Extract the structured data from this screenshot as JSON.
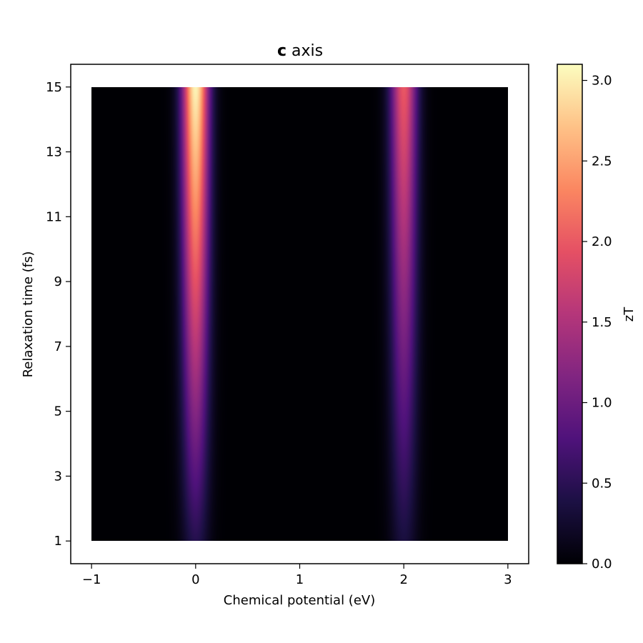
{
  "chart_data": {
    "type": "heatmap",
    "title_bold": "c",
    "title_rest": " axis",
    "xlabel": "Chemical potential (eV)",
    "ylabel": "Relaxation time (fs)",
    "colorbar_label": "zT",
    "colormap": "magma",
    "xlim": [
      -1.2,
      3.2
    ],
    "ylim": [
      0.3,
      15.7
    ],
    "data_extent_x": [
      -1,
      3
    ],
    "data_extent_y": [
      1,
      15
    ],
    "x_ticks": [
      -1,
      0,
      1,
      2,
      3
    ],
    "x_tick_labels": [
      "−1",
      "0",
      "1",
      "2",
      "3"
    ],
    "y_ticks": [
      1,
      3,
      5,
      7,
      9,
      11,
      13,
      15
    ],
    "y_tick_labels": [
      "1",
      "3",
      "5",
      "7",
      "9",
      "11",
      "13",
      "15"
    ],
    "colorbar_range": [
      0,
      3.1
    ],
    "colorbar_ticks": [
      0,
      0.5,
      1,
      1.5,
      2,
      2.5,
      3
    ],
    "colorbar_tick_labels": [
      "0.0",
      "0.5",
      "1.0",
      "1.5",
      "2.0",
      "2.5",
      "3.0"
    ],
    "peaks": [
      {
        "center_eV": 0.0,
        "width_eV": 0.09,
        "zT_at_1fs": 0.45,
        "zT_at_15fs": 3.05
      },
      {
        "center_eV": 2.0,
        "width_eV": 0.09,
        "zT_at_1fs": 0.35,
        "zT_at_15fs": 2.0
      }
    ]
  }
}
